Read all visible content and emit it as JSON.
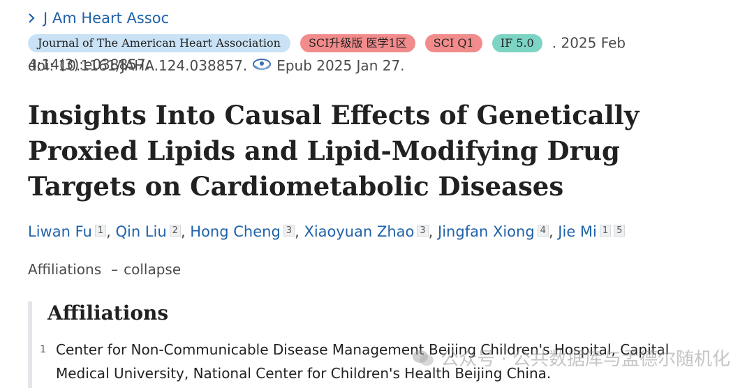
{
  "journal_nav": {
    "label": "J Am Heart Assoc"
  },
  "badges": {
    "journal": "Journal of The American Heart Association",
    "sci_level": "SCI升级版 医学1区",
    "sci_q": "SCI Q1",
    "impact_factor": "IF 5.0"
  },
  "citation": {
    "date_issue": ". 2025 Feb 4;14(3):e038857.",
    "doi": "doi: 10.1161/JAHA.124.038857.",
    "epub": "Epub 2025 Jan 27."
  },
  "article": {
    "title": "Insights Into Causal Effects of Genetically Proxied Lipids and Lipid-Modifying Drug Targets on Cardiometabolic Diseases"
  },
  "authors": [
    {
      "name": "Liwan Fu",
      "affils": [
        "1"
      ]
    },
    {
      "name": "Qin Liu",
      "affils": [
        "2"
      ]
    },
    {
      "name": "Hong Cheng",
      "affils": [
        "3"
      ]
    },
    {
      "name": "Xiaoyuan Zhao",
      "affils": [
        "3"
      ]
    },
    {
      "name": "Jingfan Xiong",
      "affils": [
        "4"
      ]
    },
    {
      "name": "Jie Mi",
      "affils": [
        "1",
        "5"
      ]
    }
  ],
  "affiliations_toggle": {
    "label": "Affiliations",
    "dash": "–",
    "action": "collapse"
  },
  "affiliations": {
    "heading": "Affiliations",
    "items": [
      {
        "num": "1",
        "text": "Center for Non-Communicable Disease Management Beijing Children's Hospital, Capital Medical University, National Center for Children's Health Beijing China."
      }
    ]
  },
  "watermark": {
    "text": "公众号 · 公共数据库与孟德尔随机化"
  },
  "colors": {
    "link": "#2062a9",
    "badge_journal": "#c9e2f6",
    "badge_sci": "#f28b8b",
    "badge_if": "#7dd4c4"
  },
  "icons": [
    "chevron-right-icon",
    "epub-icon",
    "wechat-icon"
  ]
}
